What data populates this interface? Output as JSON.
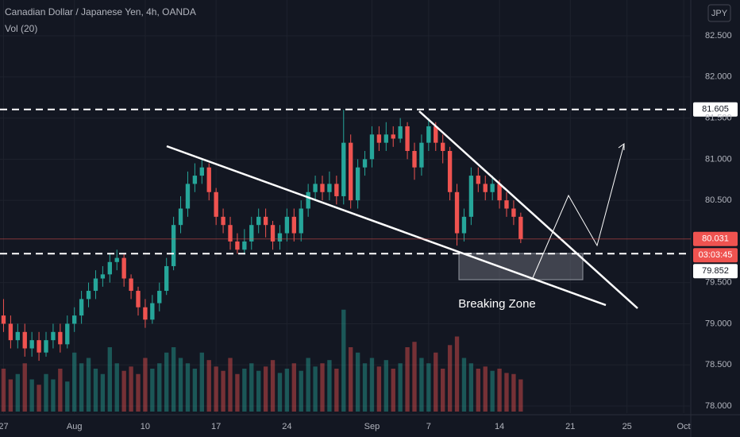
{
  "chart_data": {
    "type": "candlestick",
    "title": "Canadian Dollar / Japanese Yen, 4h, OANDA",
    "subtitle": "Vol (20)",
    "currency": "JPY",
    "annotation": "Breaking Zone",
    "up_color": "#26a69a",
    "down_color": "#ef5350",
    "grid": true,
    "xlim": [
      -0.5,
      97
    ],
    "xticks": [
      {
        "value": 0,
        "label": "27"
      },
      {
        "value": 10,
        "label": "Aug"
      },
      {
        "value": 20,
        "label": "10"
      },
      {
        "value": 30,
        "label": "17"
      },
      {
        "value": 40,
        "label": "24"
      },
      {
        "value": 52,
        "label": "Sep"
      },
      {
        "value": 60,
        "label": "7"
      },
      {
        "value": 70,
        "label": "14"
      },
      {
        "value": 80,
        "label": "21"
      },
      {
        "value": 88,
        "label": "25"
      },
      {
        "value": 96,
        "label": "Oct"
      }
    ],
    "ylim": [
      77.913,
      82.935
    ],
    "yticks": [
      {
        "value": 82.5,
        "label": "82.500"
      },
      {
        "value": 82,
        "label": "82.000"
      },
      {
        "value": 81.5,
        "label": "81.500"
      },
      {
        "value": 81,
        "label": "81.000"
      },
      {
        "value": 80.5,
        "label": "80.500"
      },
      {
        "value": 79.5,
        "label": "79.500"
      },
      {
        "value": 79,
        "label": "79.000"
      },
      {
        "value": 78.5,
        "label": "78.500"
      },
      {
        "value": 78,
        "label": "78.000"
      }
    ],
    "price_lines": [
      {
        "value": 81.605,
        "label": "81.605"
      },
      {
        "value": 79.852,
        "label": "79.852"
      }
    ],
    "last_price": {
      "value": 80.031,
      "label": "80.031"
    },
    "countdown": "03:03:45",
    "open": [
      79.1,
      79.0,
      78.8,
      78.9,
      78.7,
      78.8,
      78.65,
      78.8,
      78.9,
      78.75,
      79.0,
      79.1,
      79.3,
      79.4,
      79.55,
      79.6,
      79.75,
      79.8,
      79.55,
      79.4,
      79.2,
      79.05,
      79.25,
      79.4,
      79.7,
      80.2,
      80.4,
      80.7,
      80.8,
      80.9,
      80.6,
      80.3,
      80.2,
      80.0,
      79.9,
      80.0,
      80.2,
      80.3,
      80.2,
      80.0,
      80.1,
      80.3,
      80.1,
      80.4,
      80.6,
      80.7,
      80.6,
      80.7,
      80.55,
      81.2,
      80.5,
      80.9,
      81.0,
      81.3,
      81.2,
      81.3,
      81.25,
      81.4,
      81.1,
      80.9,
      81.2,
      81.4,
      81.2,
      81.1,
      80.6,
      80.1,
      80.3,
      80.8,
      80.7,
      80.6,
      80.7,
      80.5,
      80.4,
      80.3
    ],
    "high": [
      79.3,
      79.1,
      79.0,
      79.0,
      78.9,
      78.9,
      78.9,
      79.0,
      79.0,
      79.1,
      79.2,
      79.4,
      79.5,
      79.65,
      79.7,
      79.85,
      79.9,
      79.85,
      79.6,
      79.45,
      79.3,
      79.35,
      79.5,
      79.8,
      80.3,
      80.55,
      80.85,
      80.95,
      81.0,
      80.95,
      80.65,
      80.4,
      80.3,
      80.1,
      80.15,
      80.3,
      80.4,
      80.4,
      80.25,
      80.2,
      80.4,
      80.4,
      80.5,
      80.7,
      80.8,
      80.8,
      80.85,
      80.8,
      81.6,
      81.3,
      81.0,
      81.1,
      81.4,
      81.4,
      81.45,
      81.4,
      81.5,
      81.45,
      81.2,
      81.3,
      81.5,
      81.45,
      81.3,
      81.15,
      80.7,
      80.4,
      80.9,
      80.9,
      80.8,
      80.8,
      80.75,
      80.6,
      80.5,
      80.35
    ],
    "low": [
      78.9,
      78.7,
      78.7,
      78.6,
      78.6,
      78.55,
      78.6,
      78.7,
      78.65,
      78.7,
      78.9,
      79.0,
      79.2,
      79.3,
      79.45,
      79.5,
      79.65,
      79.45,
      79.3,
      79.1,
      78.95,
      79.0,
      79.15,
      79.35,
      79.65,
      80.1,
      80.3,
      80.6,
      80.7,
      80.5,
      80.2,
      80.1,
      79.9,
      79.85,
      79.85,
      79.9,
      80.1,
      80.05,
      79.9,
      79.9,
      80.0,
      80.0,
      80.0,
      80.3,
      80.5,
      80.5,
      80.5,
      80.45,
      80.45,
      80.4,
      80.4,
      80.8,
      80.9,
      81.1,
      81.1,
      81.15,
      81.2,
      81.0,
      80.75,
      80.8,
      81.1,
      81.1,
      80.95,
      80.5,
      79.95,
      80.0,
      80.2,
      80.6,
      80.5,
      80.5,
      80.4,
      80.3,
      80.2,
      79.98
    ],
    "close": [
      79.0,
      78.8,
      78.9,
      78.7,
      78.8,
      78.65,
      78.8,
      78.9,
      78.75,
      79.0,
      79.1,
      79.3,
      79.4,
      79.55,
      79.6,
      79.75,
      79.8,
      79.55,
      79.4,
      79.2,
      79.05,
      79.25,
      79.4,
      79.7,
      80.2,
      80.4,
      80.7,
      80.8,
      80.9,
      80.6,
      80.3,
      80.2,
      80.0,
      79.9,
      80.0,
      80.2,
      80.3,
      80.2,
      80.0,
      80.1,
      80.3,
      80.1,
      80.4,
      80.6,
      80.7,
      80.6,
      80.7,
      80.55,
      81.2,
      80.5,
      80.9,
      81.0,
      81.3,
      81.2,
      81.3,
      81.25,
      81.4,
      81.1,
      80.9,
      81.2,
      81.4,
      81.2,
      81.1,
      80.6,
      80.1,
      80.3,
      80.8,
      80.7,
      80.6,
      80.7,
      80.5,
      80.4,
      80.3,
      80.03
    ],
    "volume": [
      40,
      30,
      35,
      45,
      30,
      25,
      35,
      30,
      40,
      28,
      55,
      45,
      50,
      40,
      35,
      60,
      45,
      38,
      42,
      35,
      50,
      40,
      45,
      55,
      60,
      50,
      45,
      40,
      55,
      48,
      42,
      38,
      50,
      35,
      40,
      45,
      38,
      42,
      48,
      36,
      40,
      45,
      38,
      50,
      42,
      45,
      48,
      40,
      95,
      60,
      55,
      45,
      50,
      42,
      48,
      40,
      45,
      60,
      65,
      50,
      45,
      55,
      40,
      62,
      70,
      50,
      45,
      40,
      42,
      38,
      40,
      36,
      35,
      30
    ]
  }
}
